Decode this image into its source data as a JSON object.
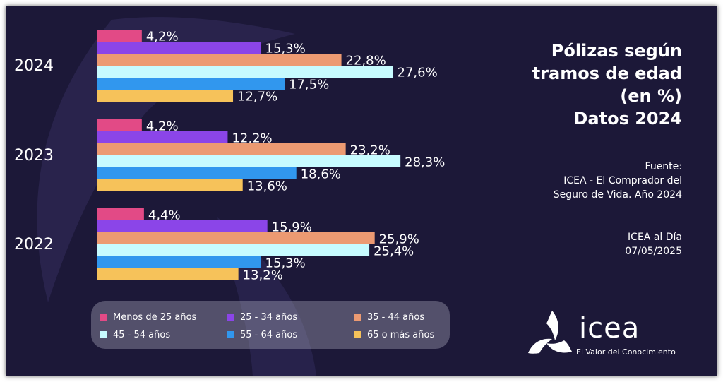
{
  "chart_data": {
    "type": "bar",
    "orientation": "horizontal",
    "categories": [
      "2024",
      "2023",
      "2022"
    ],
    "series": [
      {
        "name": "Menos de 25 años",
        "color": "#e24a86",
        "values": [
          4.2,
          4.2,
          4.4
        ],
        "labels": [
          "4,2%",
          "4,2%",
          "4,4%"
        ]
      },
      {
        "name": "25 - 34 años",
        "color": "#8b45e8",
        "values": [
          15.3,
          12.2,
          15.9
        ],
        "labels": [
          "15,3%",
          "12,2%",
          "15,9%"
        ]
      },
      {
        "name": "35 - 44 años",
        "color": "#ec9a72",
        "values": [
          22.8,
          23.2,
          25.9
        ],
        "labels": [
          "22,8%",
          "23,2%",
          "25,9%"
        ]
      },
      {
        "name": "45 - 54 años",
        "color": "#c7fbff",
        "values": [
          27.6,
          28.3,
          25.4
        ],
        "labels": [
          "27,6%",
          "28,3%",
          "25,4%"
        ]
      },
      {
        "name": "55 - 64 años",
        "color": "#3197ee",
        "values": [
          17.5,
          18.6,
          15.3
        ],
        "labels": [
          "17,5%",
          "18,6%",
          "15,3%"
        ]
      },
      {
        "name": "65 o más años",
        "color": "#f6c25a",
        "values": [
          12.7,
          13.6,
          13.2
        ],
        "labels": [
          "12,7%",
          "13,6%",
          "13,2%"
        ]
      }
    ],
    "xlim": [
      0,
      30
    ],
    "grid": false,
    "legend_position": "bottom"
  },
  "title_lines": [
    "Pólizas según",
    "tramos de edad",
    "(en %)",
    "Datos 2024"
  ],
  "source_lines": [
    "Fuente:",
    "ICEA - El Comprador del",
    "Seguro de Vida.  Año 2024"
  ],
  "note_lines": [
    "ICEA al Día",
    "07/05/2025"
  ],
  "logo": {
    "word": "icea",
    "tagline": "El Valor del Conocimiento"
  },
  "colors": {
    "background": "#1c1838",
    "text": "#ffffff"
  }
}
